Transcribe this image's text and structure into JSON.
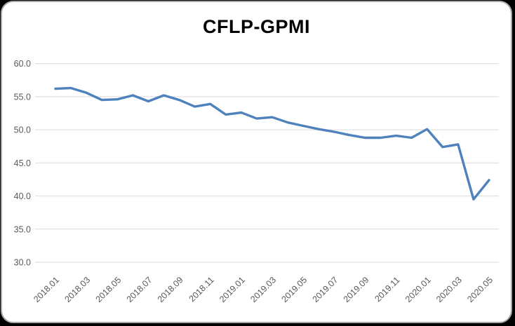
{
  "title": "CFLP-GPMI",
  "colors": {
    "series_line": "#4F81BD",
    "gridline": "#D9D9D9",
    "axis_text": "#595959",
    "title_text": "#000000",
    "card_background": "#FFFFFF",
    "page_background": "#000000"
  },
  "chart_data": {
    "type": "line",
    "title": "CFLP-GPMI",
    "x": [
      "2018.01",
      "2018.02",
      "2018.03",
      "2018.04",
      "2018.05",
      "2018.06",
      "2018.07",
      "2018.08",
      "2018.09",
      "2018.10",
      "2018.11",
      "2018.12",
      "2019.01",
      "2019.02",
      "2019.03",
      "2019.04",
      "2019.05",
      "2019.06",
      "2019.07",
      "2019.08",
      "2019.09",
      "2019.10",
      "2019.11",
      "2019.12",
      "2020.01",
      "2020.02",
      "2020.03",
      "2020.04",
      "2020.05"
    ],
    "values": [
      56.2,
      56.3,
      55.6,
      54.5,
      54.6,
      55.2,
      54.3,
      55.2,
      54.5,
      53.5,
      53.9,
      52.3,
      52.6,
      51.7,
      51.9,
      51.1,
      50.6,
      50.1,
      49.7,
      49.2,
      48.8,
      48.8,
      49.1,
      48.8,
      50.1,
      47.4,
      47.8,
      39.5,
      42.4
    ],
    "x_tick_labels": [
      "2018.01",
      "2018.03",
      "2018.05",
      "2018.07",
      "2018.09",
      "2018.11",
      "2019.01",
      "2019.03",
      "2019.05",
      "2019.07",
      "2019.09",
      "2019.11",
      "2020.01",
      "2020.03",
      "2020.05"
    ],
    "y_ticks": [
      60,
      55,
      50,
      45,
      40,
      35,
      30
    ],
    "y_tick_format": "one_decimal",
    "xlabel": "",
    "ylabel": "",
    "ylim": [
      30,
      60
    ],
    "grid": true,
    "legend_position": "none"
  }
}
